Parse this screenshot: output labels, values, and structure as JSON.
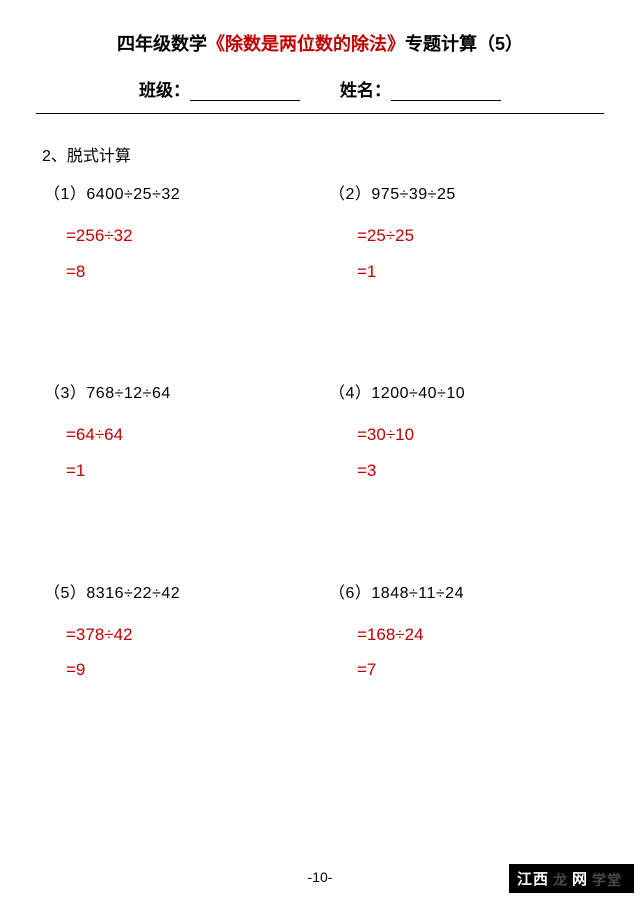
{
  "title": {
    "prefix": "四年级数学",
    "highlight": "《除数是两位数的除法》",
    "suffix": "专题计算（5）"
  },
  "info": {
    "class_label": "班级：",
    "name_label": "姓名："
  },
  "section_label": "2、脱式计算",
  "problems": [
    {
      "num": "（1）",
      "expr": "6400÷25÷32",
      "step1": "=256÷32",
      "step2": "=8"
    },
    {
      "num": "（2）",
      "expr": "975÷39÷25",
      "step1": "=25÷25",
      "step2": "=1"
    },
    {
      "num": "（3）",
      "expr": "768÷12÷64",
      "step1": "=64÷64",
      "step2": "=1"
    },
    {
      "num": "（4）",
      "expr": "1200÷40÷10",
      "step1": "=30÷10",
      "step2": "=3"
    },
    {
      "num": "（5）",
      "expr": "8316÷22÷42",
      "step1": "=378÷42",
      "step2": "=9"
    },
    {
      "num": "（6）",
      "expr": "1848÷11÷24",
      "step1": "=168÷24",
      "step2": "=7"
    }
  ],
  "page_number": "-10-",
  "watermark": {
    "left": "江西",
    "mid": "龙",
    "right": "网",
    "faint": "学堂"
  },
  "colors": {
    "answer": "#c00000",
    "title_highlight": "#c00000",
    "text": "#000000",
    "background": "#ffffff"
  }
}
